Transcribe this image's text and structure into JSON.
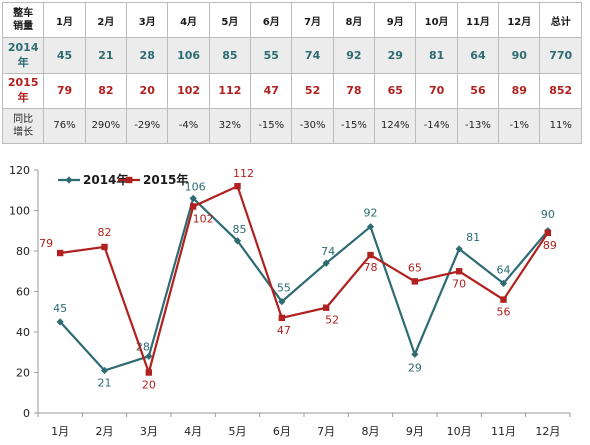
{
  "table": {
    "corner_line1": "整车",
    "corner_line2": "销量",
    "headers": [
      "1月",
      "2月",
      "3月",
      "4月",
      "5月",
      "6月",
      "7月",
      "8月",
      "9月",
      "10月",
      "11月",
      "12月",
      "总计"
    ],
    "rows": [
      {
        "label": "2014年",
        "cells": [
          "45",
          "21",
          "28",
          "106",
          "85",
          "55",
          "74",
          "92",
          "29",
          "81",
          "64",
          "90",
          "770"
        ]
      },
      {
        "label": "2015年",
        "cells": [
          "79",
          "82",
          "20",
          "102",
          "112",
          "47",
          "52",
          "78",
          "65",
          "70",
          "56",
          "89",
          "852"
        ]
      }
    ],
    "growth_label_line1": "同比",
    "growth_label_line2": "增长",
    "growth": [
      "76%",
      "290%",
      "-29%",
      "-4%",
      "32%",
      "-15%",
      "-30%",
      "-15%",
      "124%",
      "-14%",
      "-13%",
      "-1%",
      "11%"
    ]
  },
  "chart_data": {
    "type": "line",
    "categories": [
      "1月",
      "2月",
      "3月",
      "4月",
      "5月",
      "6月",
      "7月",
      "8月",
      "9月",
      "10月",
      "11月",
      "12月"
    ],
    "series": [
      {
        "name": "2014年",
        "values": [
          45,
          21,
          28,
          106,
          85,
          55,
          74,
          92,
          29,
          81,
          64,
          90
        ],
        "color": "#2e6b73",
        "marker": "diamond"
      },
      {
        "name": "2015年",
        "values": [
          79,
          82,
          20,
          102,
          112,
          47,
          52,
          78,
          65,
          70,
          56,
          89
        ],
        "color": "#b0211f",
        "marker": "square"
      }
    ],
    "ylim": [
      0,
      120
    ],
    "yticks": [
      0,
      20,
      40,
      60,
      80,
      100,
      120
    ],
    "grid": false,
    "legend_position": "top-left"
  }
}
